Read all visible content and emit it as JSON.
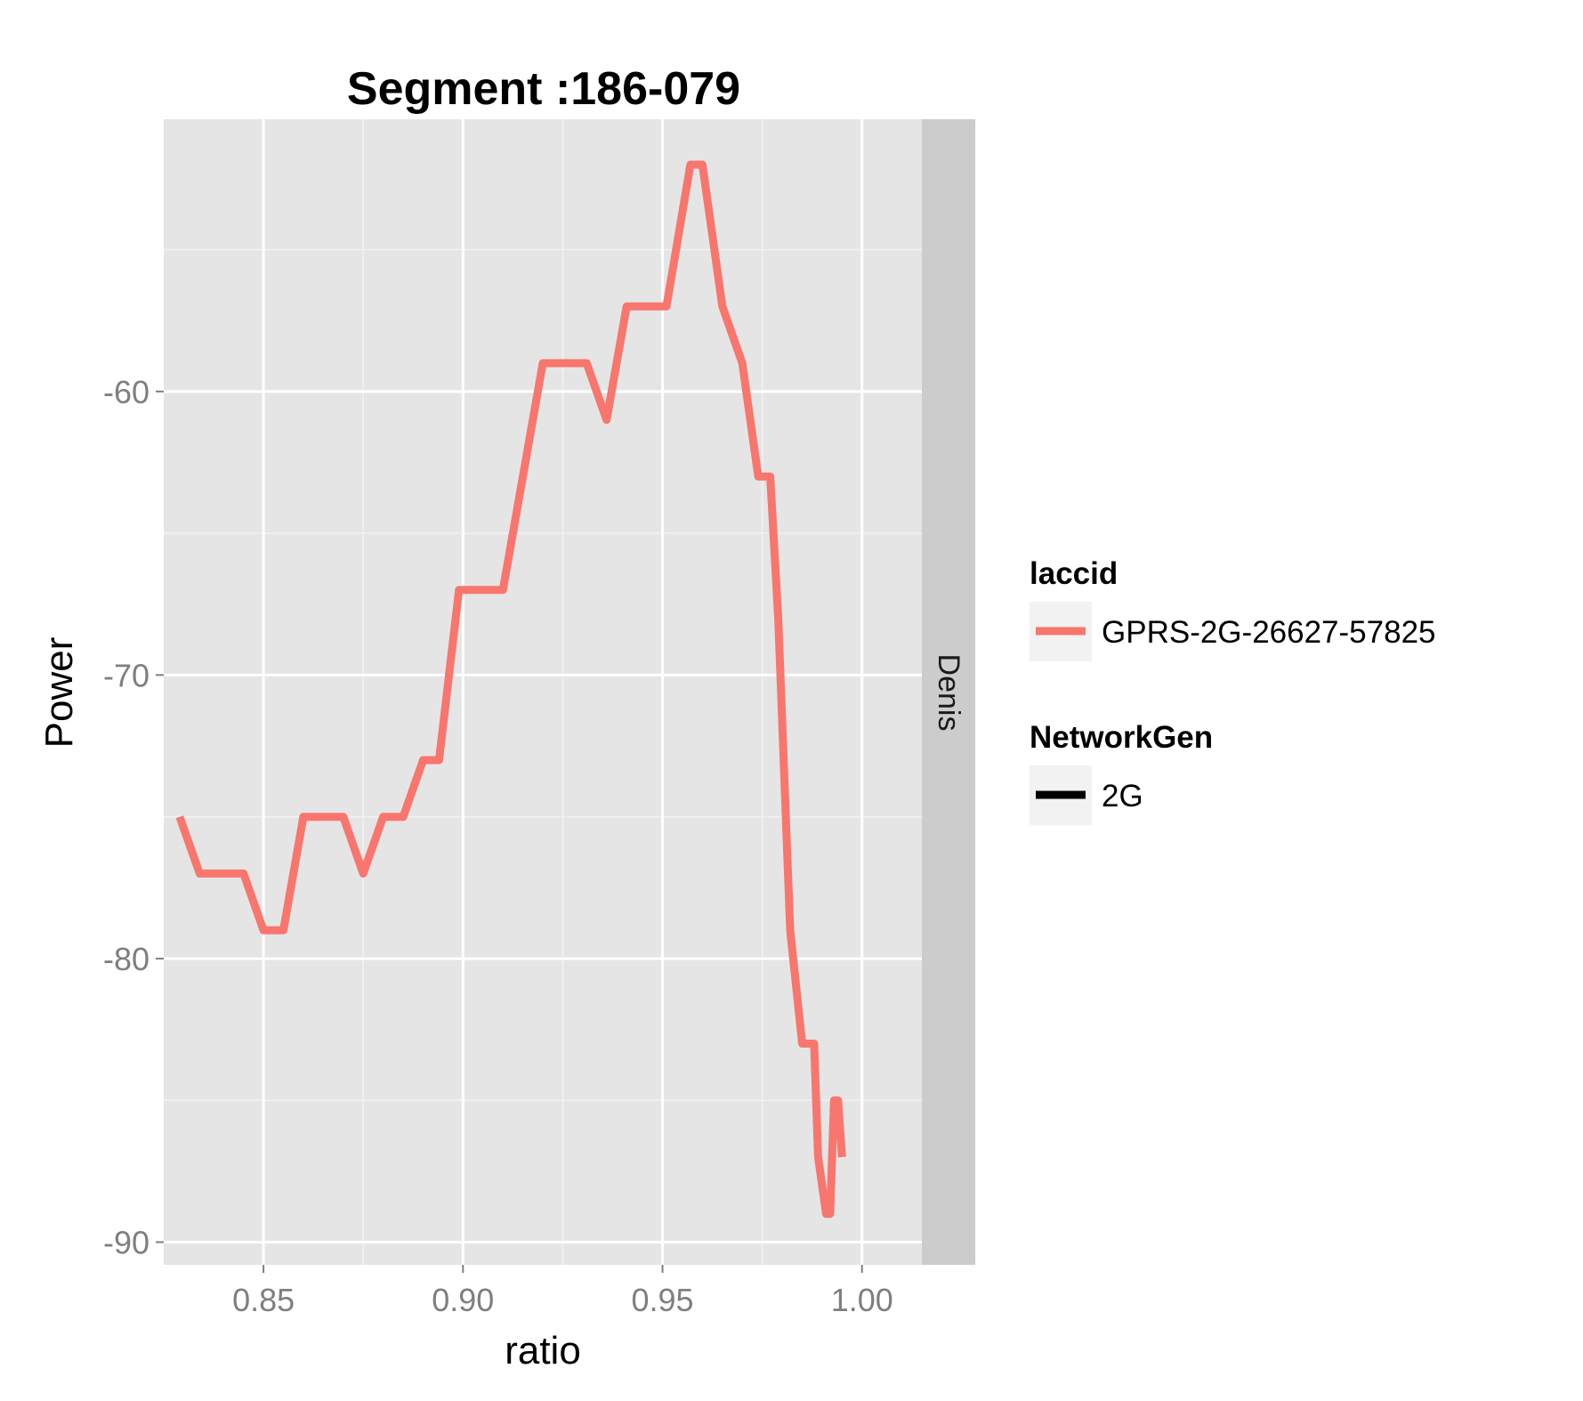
{
  "chart_data": {
    "type": "line",
    "title": "Segment :186-079",
    "xlabel": "ratio",
    "ylabel": "Power",
    "xlim": [
      0.825,
      1.015
    ],
    "ylim": [
      -90.8,
      -50.4
    ],
    "x_ticks": [
      0.85,
      0.9,
      0.95,
      1.0
    ],
    "x_tick_labels": [
      "0.85",
      "0.90",
      "0.95",
      "1.00"
    ],
    "y_ticks": [
      -90,
      -80,
      -70,
      -60
    ],
    "y_tick_labels": [
      "-90",
      "-80",
      "-70",
      "-60"
    ],
    "grid": true,
    "facet_strip": "Denis",
    "legend_position": "right",
    "series": [
      {
        "name": "GPRS-2G-26627-57825",
        "color": "#F8766D",
        "x": [
          0.829,
          0.834,
          0.839,
          0.844,
          0.845,
          0.85,
          0.855,
          0.86,
          0.865,
          0.87,
          0.875,
          0.88,
          0.885,
          0.89,
          0.894,
          0.899,
          0.904,
          0.91,
          0.92,
          0.931,
          0.936,
          0.941,
          0.946,
          0.951,
          0.957,
          0.96,
          0.965,
          0.97,
          0.974,
          0.977,
          0.979,
          0.982,
          0.985,
          0.988,
          0.989,
          0.991,
          0.992,
          0.993,
          0.994,
          0.995
        ],
        "y": [
          -75,
          -77,
          -77,
          -77,
          -77,
          -79,
          -79,
          -75,
          -75,
          -75,
          -77,
          -75,
          -75,
          -73,
          -73,
          -67,
          -67,
          -67,
          -59,
          -59,
          -61,
          -57,
          -57,
          -57,
          -52,
          -52,
          -57,
          -59,
          -63,
          -63,
          -68,
          -79,
          -83,
          -83,
          -87,
          -89,
          -89,
          -85,
          -85,
          -87
        ]
      }
    ],
    "legend": [
      {
        "title": "laccid",
        "items": [
          {
            "label": "GPRS-2G-26627-57825",
            "color": "#F8766D"
          }
        ]
      },
      {
        "title": "NetworkGen",
        "items": [
          {
            "label": "2G",
            "color": "#000000"
          }
        ]
      }
    ]
  }
}
